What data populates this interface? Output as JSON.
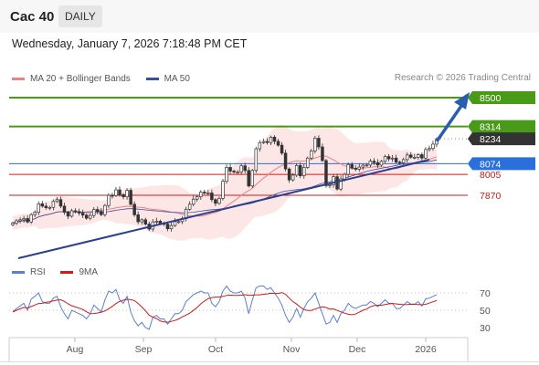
{
  "header": {
    "symbol": "Cac 40",
    "timeframe": "DAILY"
  },
  "datetime": "Wednesday, January 7, 2026 7:18:48 PM CET",
  "legend": {
    "bollinger": {
      "label": "MA 20 + Bollinger Bands",
      "color": "#f08080"
    },
    "ma50": {
      "label": "MA 50",
      "color": "#3a4f9a"
    }
  },
  "credit": "Research © 2026 Trading Central",
  "rsi_legend": {
    "rsi": {
      "label": "RSI",
      "color": "#5b7fd1"
    },
    "ma9": {
      "label": "9MA",
      "color": "#d11a1a"
    }
  },
  "chart_data": {
    "type": "candlestick",
    "x_labels": [
      "Aug",
      "Sep",
      "Oct",
      "Nov",
      "Dec",
      "2026"
    ],
    "last_price": 8234,
    "levels": [
      {
        "value": 8500,
        "label": "8500",
        "kind": "target",
        "color": "#4a9a1a"
      },
      {
        "value": 8314,
        "label": "8314",
        "kind": "resistance",
        "color": "#4a9a1a"
      },
      {
        "value": 8234,
        "label": "8234",
        "kind": "last",
        "color": "#333333"
      },
      {
        "value": 8074,
        "label": "8074",
        "kind": "pivot",
        "color": "#2a6fdb"
      },
      {
        "value": 8005,
        "label": "8005",
        "kind": "support",
        "color": "#d11a1a"
      },
      {
        "value": 7870,
        "label": "7870",
        "kind": "support",
        "color": "#d11a1a"
      }
    ],
    "closes": [
      7690,
      7705,
      7712,
      7720,
      7698,
      7745,
      7760,
      7815,
      7800,
      7790,
      7792,
      7830,
      7842,
      7800,
      7760,
      7735,
      7770,
      7765,
      7755,
      7742,
      7722,
      7740,
      7778,
      7766,
      7745,
      7804,
      7870,
      7868,
      7905,
      7874,
      7860,
      7902,
      7812,
      7744,
      7699,
      7712,
      7684,
      7652,
      7698,
      7703,
      7688,
      7684,
      7654,
      7675,
      7700,
      7700,
      7720,
      7780,
      7812,
      7845,
      7860,
      7890,
      7885,
      7885,
      7842,
      7818,
      7850,
      7960,
      8050,
      8026,
      8020,
      8020,
      8060,
      8030,
      7930,
      8030,
      8170,
      8210,
      8217,
      8210,
      8245,
      8218,
      8193,
      8142,
      8040,
      7969,
      8000,
      8062,
      7996,
      8050,
      8110,
      8156,
      8238,
      8182,
      8094,
      7932,
      7938,
      7990,
      7910,
      7975,
      8005,
      8068,
      8045,
      8038,
      8052,
      8064,
      8065,
      8090,
      8081,
      8065,
      8089,
      8120,
      8105,
      8110,
      8084,
      8080,
      8100,
      8130,
      8115,
      8115,
      8132,
      8110,
      8165,
      8172,
      8200,
      8234
    ],
    "rsi": {
      "scale_labels": [
        "70",
        "50",
        "30"
      ],
      "values": [
        48,
        52,
        55,
        58,
        50,
        63,
        66,
        70,
        60,
        58,
        58,
        64,
        66,
        54,
        46,
        40,
        50,
        48,
        46,
        44,
        40,
        46,
        56,
        52,
        48,
        62,
        72,
        70,
        74,
        62,
        58,
        66,
        48,
        38,
        32,
        36,
        30,
        28,
        42,
        44,
        40,
        40,
        34,
        40,
        46,
        46,
        50,
        60,
        64,
        68,
        70,
        72,
        70,
        70,
        58,
        54,
        60,
        72,
        78,
        72,
        70,
        70,
        72,
        64,
        46,
        62,
        76,
        78,
        78,
        74,
        76,
        70,
        64,
        56,
        44,
        36,
        42,
        52,
        42,
        52,
        60,
        64,
        70,
        58,
        46,
        34,
        36,
        44,
        36,
        46,
        50,
        58,
        54,
        52,
        54,
        56,
        56,
        60,
        58,
        54,
        58,
        62,
        58,
        58,
        52,
        52,
        56,
        60,
        57,
        57,
        60,
        55,
        63,
        64,
        66,
        68
      ]
    }
  }
}
